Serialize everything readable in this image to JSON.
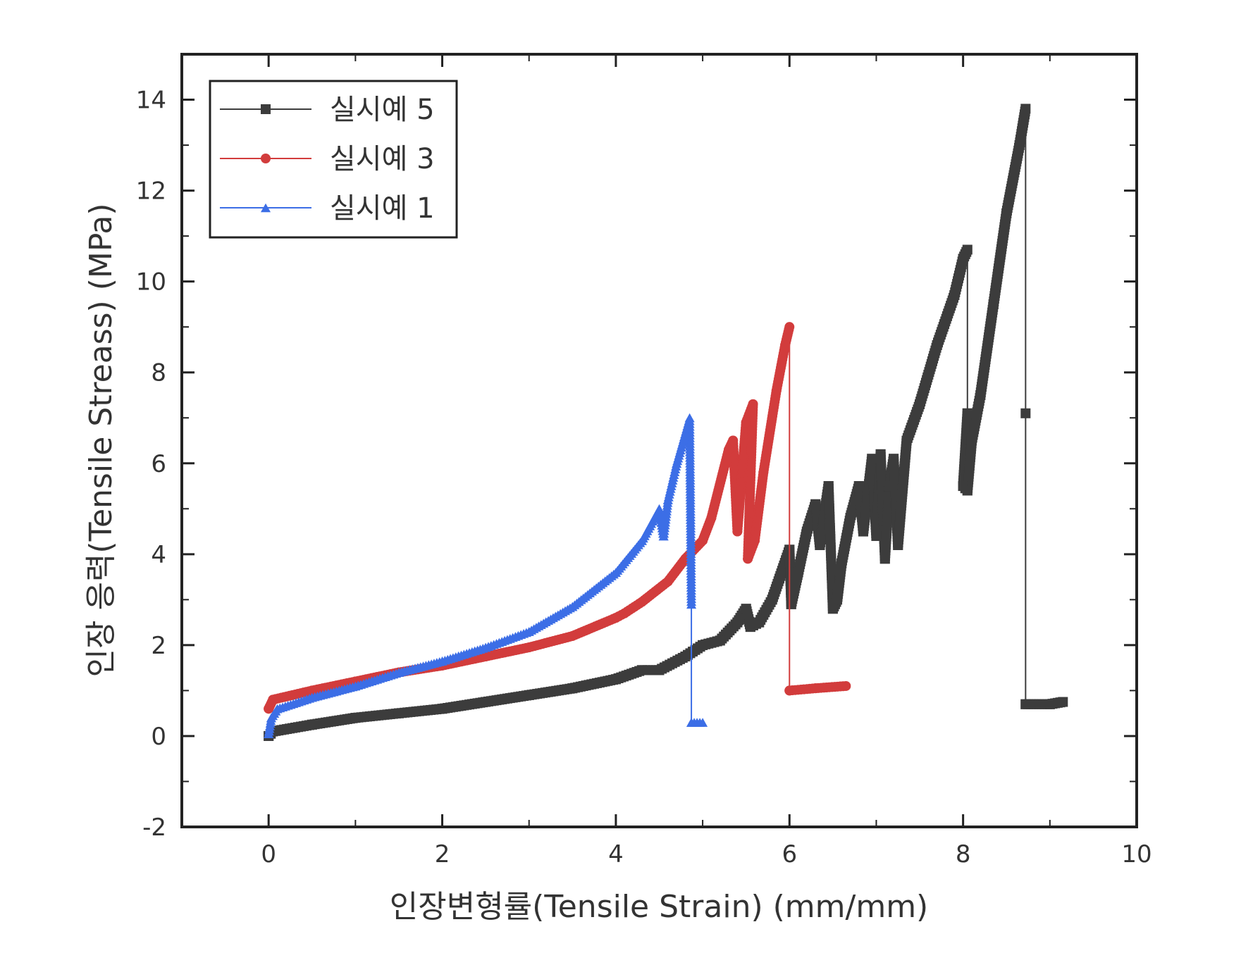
{
  "chart_data": {
    "type": "line",
    "title": "",
    "xlabel": "인장변형률(Tensile Strain) (mm/mm)",
    "ylabel": "인장 응력(Tensile Streass) (MPa)",
    "xlim": [
      -1,
      10
    ],
    "ylim": [
      -2,
      15
    ],
    "x_ticks": [
      0,
      2,
      4,
      6,
      8,
      10
    ],
    "y_ticks": [
      -2,
      0,
      2,
      4,
      6,
      8,
      10,
      12,
      14
    ],
    "x_tick_labels": [
      "0",
      "2",
      "4",
      "6",
      "8",
      "10"
    ],
    "y_tick_labels": [
      "-2",
      "0",
      "2",
      "4",
      "6",
      "8",
      "10",
      "12",
      "14"
    ],
    "grid": false,
    "legend_position": "top-left",
    "series": [
      {
        "name": "실시예 5",
        "color": "#3c3c3c",
        "marker": "square",
        "points": [
          [
            0,
            0
          ],
          [
            0.05,
            0.1
          ],
          [
            0.5,
            0.25
          ],
          [
            1,
            0.4
          ],
          [
            1.5,
            0.5
          ],
          [
            2,
            0.6
          ],
          [
            2.5,
            0.75
          ],
          [
            3,
            0.9
          ],
          [
            3.5,
            1.05
          ],
          [
            4,
            1.25
          ],
          [
            4.3,
            1.45
          ],
          [
            4.5,
            1.45
          ],
          [
            4.8,
            1.75
          ],
          [
            5,
            2.0
          ],
          [
            5.2,
            2.1
          ],
          [
            5.4,
            2.5
          ],
          [
            5.5,
            2.8
          ],
          [
            5.55,
            2.4
          ],
          [
            5.65,
            2.5
          ],
          [
            5.8,
            3.0
          ],
          [
            6,
            4.1
          ],
          [
            6.02,
            2.9
          ],
          [
            6.1,
            3.6
          ],
          [
            6.2,
            4.5
          ],
          [
            6.3,
            5.1
          ],
          [
            6.35,
            4.2
          ],
          [
            6.45,
            5.5
          ],
          [
            6.5,
            2.8
          ],
          [
            6.55,
            3.0
          ],
          [
            6.6,
            3.8
          ],
          [
            6.7,
            4.8
          ],
          [
            6.8,
            5.5
          ],
          [
            6.85,
            4.5
          ],
          [
            6.95,
            6.1
          ],
          [
            7.0,
            4.4
          ],
          [
            7.05,
            6.2
          ],
          [
            7.1,
            3.9
          ],
          [
            7.15,
            5.5
          ],
          [
            7.2,
            6.1
          ],
          [
            7.25,
            4.2
          ],
          [
            7.35,
            6.5
          ],
          [
            7.5,
            7.3
          ],
          [
            7.7,
            8.6
          ],
          [
            7.9,
            9.7
          ],
          [
            8.0,
            10.5
          ],
          [
            8.05,
            10.7
          ],
          [
            8.05,
            7.1
          ],
          [
            8.0,
            5.5
          ],
          [
            8.05,
            5.4
          ],
          [
            8.1,
            6.5
          ],
          [
            8.2,
            7.5
          ],
          [
            8.35,
            9.5
          ],
          [
            8.5,
            11.5
          ],
          [
            8.65,
            13.0
          ],
          [
            8.72,
            13.8
          ],
          [
            8.72,
            7.1
          ],
          [
            8.72,
            0.7
          ],
          [
            9.0,
            0.7
          ],
          [
            9.15,
            0.75
          ]
        ]
      },
      {
        "name": "실시예 3",
        "color": "#d23c3c",
        "marker": "circle",
        "points": [
          [
            0,
            0.6
          ],
          [
            0.05,
            0.8
          ],
          [
            0.5,
            1.0
          ],
          [
            1,
            1.2
          ],
          [
            1.5,
            1.4
          ],
          [
            2,
            1.55
          ],
          [
            2.5,
            1.75
          ],
          [
            3,
            1.95
          ],
          [
            3.5,
            2.2
          ],
          [
            4,
            2.6
          ],
          [
            4.1,
            2.7
          ],
          [
            4.3,
            2.95
          ],
          [
            4.6,
            3.4
          ],
          [
            4.8,
            3.9
          ],
          [
            5.0,
            4.3
          ],
          [
            5.1,
            4.8
          ],
          [
            5.3,
            6.3
          ],
          [
            5.35,
            6.5
          ],
          [
            5.4,
            4.5
          ],
          [
            5.5,
            6.9
          ],
          [
            5.58,
            7.3
          ],
          [
            5.52,
            3.9
          ],
          [
            5.6,
            4.3
          ],
          [
            5.7,
            5.8
          ],
          [
            5.85,
            7.6
          ],
          [
            5.95,
            8.6
          ],
          [
            6.0,
            9.0
          ],
          [
            6.0,
            1.0
          ],
          [
            6.3,
            1.05
          ],
          [
            6.65,
            1.1
          ]
        ]
      },
      {
        "name": "실시예 1",
        "color": "#3c6ee6",
        "marker": "triangle",
        "points": [
          [
            0,
            0.05
          ],
          [
            0.03,
            0.4
          ],
          [
            0.1,
            0.6
          ],
          [
            0.5,
            0.85
          ],
          [
            1,
            1.1
          ],
          [
            1.5,
            1.4
          ],
          [
            2,
            1.65
          ],
          [
            2.5,
            1.95
          ],
          [
            3,
            2.3
          ],
          [
            3.5,
            2.85
          ],
          [
            4,
            3.6
          ],
          [
            4.3,
            4.3
          ],
          [
            4.5,
            5.0
          ],
          [
            4.55,
            4.4
          ],
          [
            4.6,
            5.2
          ],
          [
            4.7,
            6.0
          ],
          [
            4.85,
            7.0
          ],
          [
            4.87,
            2.9
          ],
          [
            4.87,
            0.3
          ],
          [
            5.0,
            0.3
          ]
        ]
      }
    ]
  }
}
